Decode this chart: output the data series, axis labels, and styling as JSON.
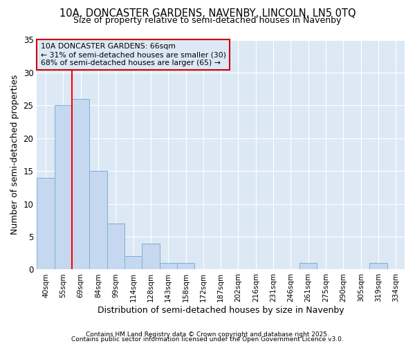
{
  "title": "10A, DONCASTER GARDENS, NAVENBY, LINCOLN, LN5 0TQ",
  "subtitle": "Size of property relative to semi-detached houses in Navenby",
  "xlabel": "Distribution of semi-detached houses by size in Navenby",
  "ylabel": "Number of semi-detached properties",
  "categories": [
    "40sqm",
    "55sqm",
    "69sqm",
    "84sqm",
    "99sqm",
    "114sqm",
    "128sqm",
    "143sqm",
    "158sqm",
    "172sqm",
    "187sqm",
    "202sqm",
    "216sqm",
    "231sqm",
    "246sqm",
    "261sqm",
    "275sqm",
    "290sqm",
    "305sqm",
    "319sqm",
    "334sqm"
  ],
  "values": [
    14,
    25,
    26,
    15,
    7,
    2,
    4,
    1,
    1,
    0,
    0,
    0,
    0,
    0,
    0,
    1,
    0,
    0,
    0,
    1,
    0
  ],
  "bar_color": "#c5d8f0",
  "bar_edge_color": "#7bafd4",
  "background_color": "#ffffff",
  "plot_bg_color": "#dde8f5",
  "grid_color": "#ffffff",
  "redline_index": 2,
  "annotation_title": "10A DONCASTER GARDENS: 66sqm",
  "annotation_line1": "← 31% of semi-detached houses are smaller (30)",
  "annotation_line2": "68% of semi-detached houses are larger (65) →",
  "annotation_box_color": "#cc0000",
  "ylim": [
    0,
    35
  ],
  "yticks": [
    0,
    5,
    10,
    15,
    20,
    25,
    30,
    35
  ],
  "footnote1": "Contains HM Land Registry data © Crown copyright and database right 2025.",
  "footnote2": "Contains public sector information licensed under the Open Government Licence v3.0."
}
